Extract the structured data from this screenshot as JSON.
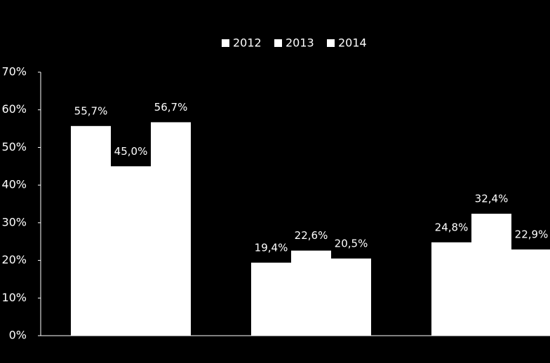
{
  "chart_data": {
    "type": "bar",
    "categories": [
      null,
      null,
      null
    ],
    "series": [
      {
        "name": "2012",
        "color": "#ffffff",
        "values": [
          55.7,
          19.4,
          24.8
        ],
        "value_labels": [
          "55,7%",
          "19,4%",
          "24,8%"
        ]
      },
      {
        "name": "2013",
        "color": "#ffffff",
        "values": [
          45.0,
          22.6,
          32.4
        ],
        "value_labels": [
          "45,0%",
          "22,6%",
          "32,4%"
        ]
      },
      {
        "name": "2014",
        "color": "#ffffff",
        "values": [
          56.7,
          20.5,
          22.9
        ],
        "value_labels": [
          "56,7%",
          "20,5%",
          "22,9%"
        ]
      }
    ],
    "ylim": [
      0,
      70
    ],
    "yticks": [
      {
        "value": 0,
        "label": "0%"
      },
      {
        "value": 10,
        "label": "10%"
      },
      {
        "value": 20,
        "label": "20%"
      },
      {
        "value": 30,
        "label": "30%"
      },
      {
        "value": 40,
        "label": "40%"
      },
      {
        "value": 50,
        "label": "50%"
      },
      {
        "value": 60,
        "label": "60%"
      },
      {
        "value": 70,
        "label": "70%"
      }
    ],
    "grid": false,
    "legend": "top"
  }
}
